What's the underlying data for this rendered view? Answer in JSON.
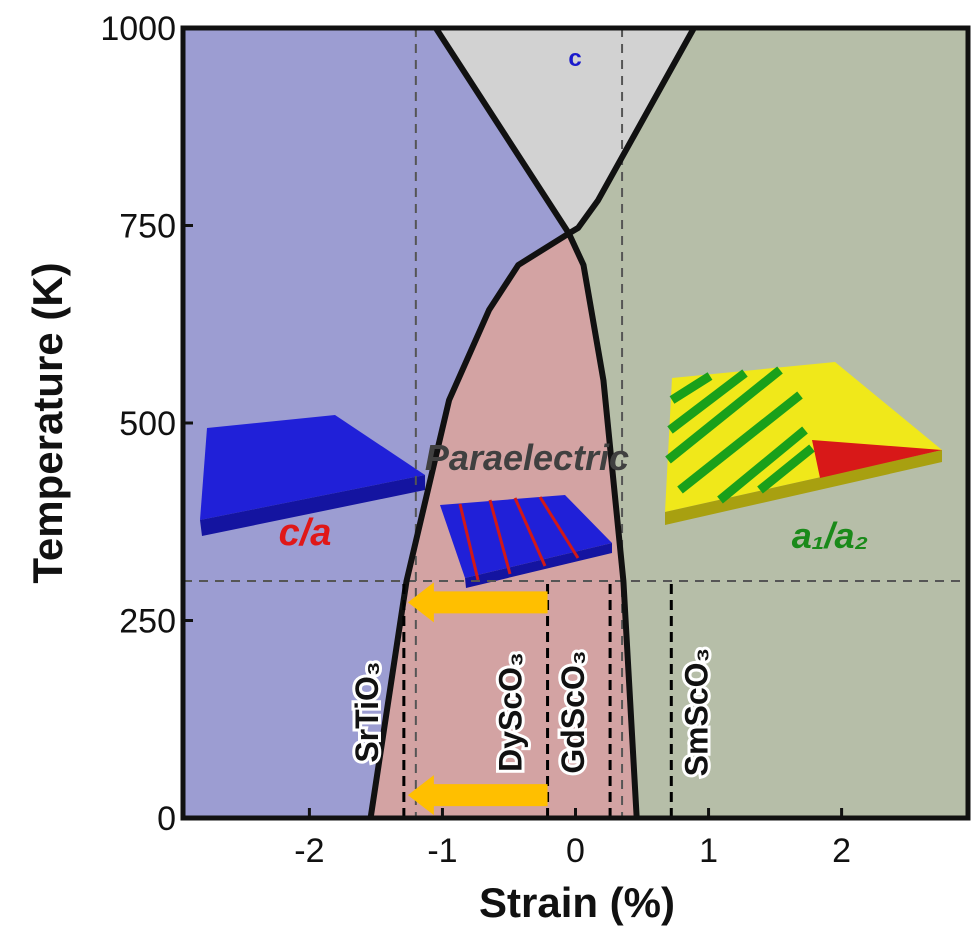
{
  "chart_data": {
    "type": "phase-diagram",
    "x_label": "Strain (%)",
    "y_label": "Temperature (K)",
    "xlim": [
      -2.95,
      2.95
    ],
    "ylim": [
      0,
      1000
    ],
    "xticks": [
      -2,
      -1,
      0,
      1,
      2
    ],
    "yticks": [
      0,
      250,
      500,
      750,
      1000
    ],
    "boundaries": [
      {
        "x": [
          -1.54,
          -1.27,
          -0.95,
          -0.65,
          -0.43,
          -0.05
        ],
        "y": [
          0,
          300,
          529,
          643,
          700,
          740
        ]
      },
      {
        "x": [
          0.46,
          0.36,
          0.21,
          0.06,
          -0.05
        ],
        "y": [
          0,
          300,
          554,
          700,
          740
        ]
      },
      {
        "x": [
          -0.05,
          -1.05
        ],
        "y": [
          740,
          1000
        ]
      },
      {
        "x": [
          -0.05,
          0.02,
          0.17,
          0.89
        ],
        "y": [
          740,
          747,
          782,
          1000
        ]
      }
    ],
    "phases": [
      {
        "label": "c",
        "color": "#9c9dd2",
        "label_color": "#1a1acc"
      },
      {
        "label": "c/a",
        "color": "#d3a3a3",
        "label_color": "#e01818"
      },
      {
        "label": "Paraelectric",
        "color": "#d2d2d2",
        "label_color": "#404040"
      },
      {
        "label": "a₁/a₂",
        "color": "#b6bea8",
        "label_color": "#1a8a1a"
      }
    ],
    "hlines": [
      300
    ],
    "vlines": [
      -1.2,
      0.35
    ],
    "substrates": [
      {
        "label": "SrTiO₃",
        "x": -1.29
      },
      {
        "label": "DyScO₃",
        "x": -0.21
      },
      {
        "label": "GdScO₃",
        "x": 0.26
      },
      {
        "label": "SmScO₃",
        "x": 0.72
      }
    ],
    "arrow_y": [
      273,
      29
    ],
    "arrow_color": "#ffbf00"
  }
}
